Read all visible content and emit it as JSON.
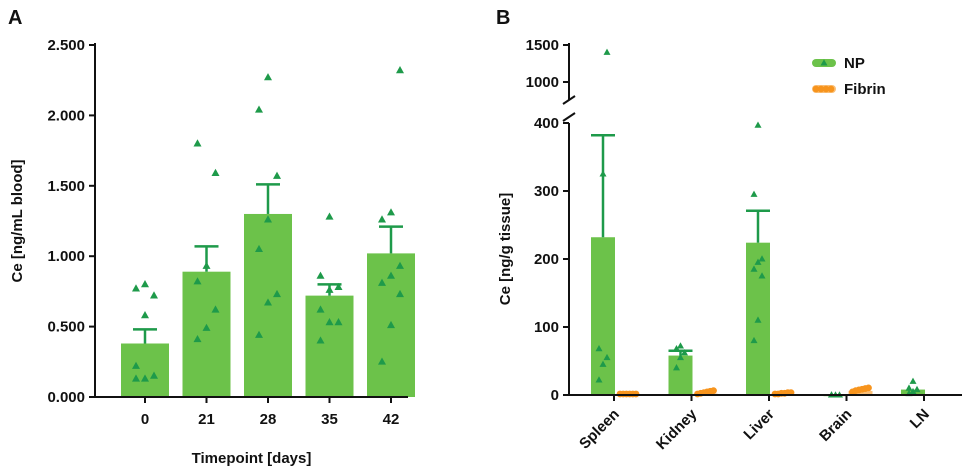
{
  "colors": {
    "np_bar": "#6cc24a",
    "np_dark": "#1e9a4a",
    "fibrin": "#f7941d",
    "axis": "#111111"
  },
  "chart_data": [
    {
      "panel": "A",
      "type": "bar",
      "title": "",
      "xlabel": "Timepoint [days]",
      "ylabel": "Ce [ng/mL blood]",
      "ylim": [
        0,
        2.5
      ],
      "yticks": [
        0,
        0.5,
        1.0,
        1.5,
        2.0,
        2.5
      ],
      "ytick_labels": [
        "0.000",
        "0.500",
        "1.000",
        "1.500",
        "2.000",
        "2.500"
      ],
      "categories": [
        "0",
        "21",
        "28",
        "35",
        "42"
      ],
      "values": [
        0.38,
        0.89,
        1.3,
        0.72,
        1.02
      ],
      "errors": [
        0.1,
        0.18,
        0.21,
        0.08,
        0.19
      ],
      "points": [
        [
          0.13,
          0.13,
          0.15,
          0.22,
          0.58,
          0.72,
          0.77,
          0.8
        ],
        [
          0.41,
          0.49,
          0.62,
          0.82,
          0.93,
          1.59,
          1.8
        ],
        [
          0.44,
          0.67,
          0.73,
          1.05,
          1.26,
          1.57,
          2.04,
          2.27
        ],
        [
          0.4,
          0.53,
          0.53,
          0.62,
          0.76,
          0.78,
          0.86,
          1.28
        ],
        [
          0.25,
          0.51,
          0.73,
          0.81,
          0.86,
          0.93,
          1.26,
          1.31,
          2.32
        ]
      ]
    },
    {
      "panel": "B",
      "type": "bar",
      "title": "",
      "xlabel": "",
      "ylabel": "Ce [ng/g tissue]",
      "ylim_lower": [
        0,
        400
      ],
      "ylim_upper": [
        400,
        1500
      ],
      "yticks_lower": [
        0,
        100,
        200,
        300,
        400
      ],
      "yticks_upper": [
        1000,
        1500
      ],
      "categories": [
        "Spleen",
        "Kidney",
        "Liver",
        "Brain",
        "LN"
      ],
      "legend": [
        "NP",
        "Fibrin"
      ],
      "legend_position": "top-right",
      "series": [
        {
          "name": "NP",
          "values": [
            232,
            58,
            224,
            0.5,
            8
          ],
          "errors": [
            150,
            7,
            47,
            0,
            0
          ],
          "points": [
            [
              22,
              45,
              55,
              68,
              325,
              1400
            ],
            [
              40,
              55,
              62,
              68,
              72
            ],
            [
              80,
              110,
              175,
              185,
              195,
              200,
              295,
              415
            ],
            [
              0,
              0,
              0,
              0
            ],
            [
              2,
              5,
              8,
              10,
              20
            ]
          ]
        },
        {
          "name": "Fibrin",
          "values": [
            0,
            2,
            1,
            6,
            0
          ],
          "errors": [
            0,
            0,
            0,
            0,
            0
          ],
          "points": [
            [
              0,
              0,
              0,
              0,
              0,
              0
            ],
            [
              0,
              1,
              2,
              3,
              4,
              5
            ],
            [
              0,
              0,
              1,
              1,
              2,
              2
            ],
            [
              3,
              5,
              6,
              7,
              8,
              9
            ],
            []
          ]
        }
      ]
    }
  ]
}
